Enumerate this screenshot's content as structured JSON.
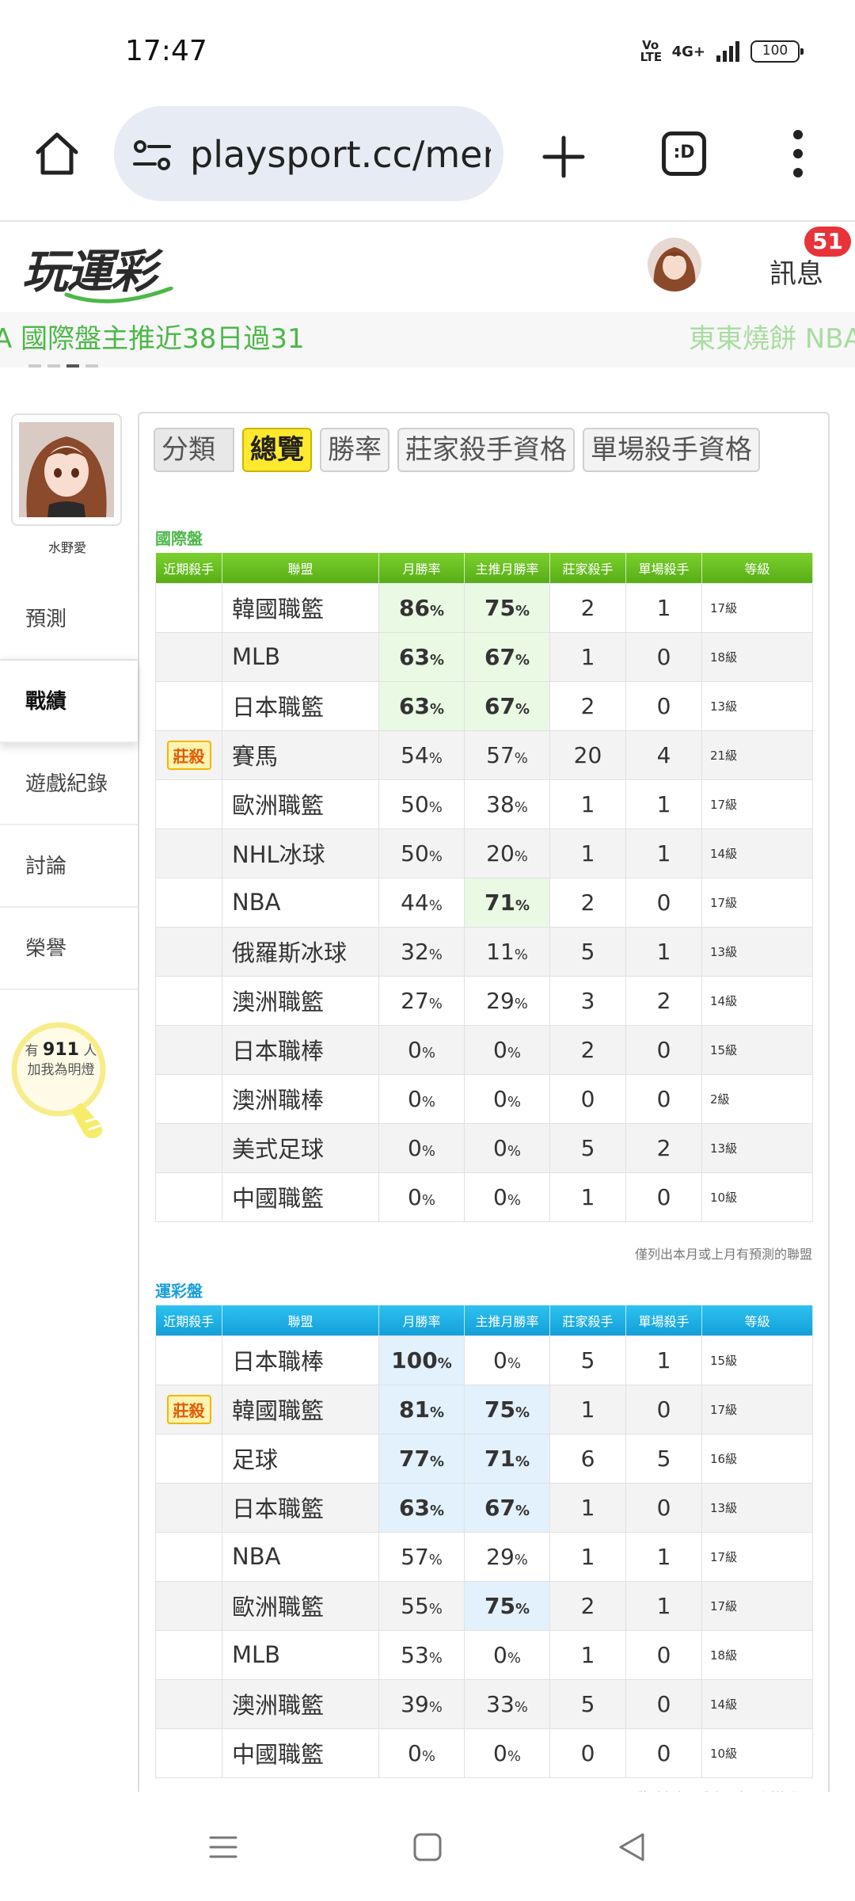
{
  "status": {
    "time": "17:47",
    "volte": "Vo LTE",
    "network": "4G+",
    "battery": "100"
  },
  "browser": {
    "url": "playsport.cc/men",
    "tabs_label": ":D"
  },
  "header": {
    "logo": "玩運彩",
    "messages_label": "訊息",
    "messages_count": "51"
  },
  "marquee": {
    "left_text": "A 國際盤主推近38日過31",
    "right_text": "東東燒餅 NBA"
  },
  "sidebar": {
    "user_name": "水野愛",
    "nav": [
      "預測",
      "戰績",
      "遊戲紀錄",
      "討論",
      "榮譽"
    ],
    "fans_prefix": "有",
    "fans_count": "911",
    "fans_suffix": "人",
    "fans_line2": "加我為明燈"
  },
  "tabs": [
    "分類",
    "總覽",
    "勝率",
    "莊家殺手資格",
    "單場殺手資格"
  ],
  "columns": [
    "近期殺手",
    "聯盟",
    "月勝率",
    "主推月勝率",
    "莊家殺手",
    "單場殺手",
    "等級"
  ],
  "percent_sign": "%",
  "footnote": "僅列出本月或上月有預測的聯盟",
  "colors": {
    "green_header": "#58ad17",
    "blue_header": "#139fd8",
    "green_title": "#4cb848",
    "blue_title": "#1a9fd9",
    "badge": "#e8333a",
    "active_tab": "#ffe92e"
  },
  "international": {
    "title": "國際盤",
    "rows": [
      {
        "killer": "",
        "league": "韓國職籃",
        "month": "86",
        "main": "75",
        "house": "2",
        "single": "1",
        "level": "17級",
        "hl_month": true,
        "hl_main": true
      },
      {
        "killer": "",
        "league": "MLB",
        "month": "63",
        "main": "67",
        "house": "1",
        "single": "0",
        "level": "18級",
        "hl_month": true,
        "hl_main": true
      },
      {
        "killer": "",
        "league": "日本職籃",
        "month": "63",
        "main": "67",
        "house": "2",
        "single": "0",
        "level": "13級",
        "hl_month": true,
        "hl_main": true
      },
      {
        "killer": "莊殺",
        "league": "賽馬",
        "month": "54",
        "main": "57",
        "house": "20",
        "single": "4",
        "level": "21級",
        "hl_month": false,
        "hl_main": false
      },
      {
        "killer": "",
        "league": "歐洲職籃",
        "month": "50",
        "main": "38",
        "house": "1",
        "single": "1",
        "level": "17級",
        "hl_month": false,
        "hl_main": false
      },
      {
        "killer": "",
        "league": "NHL冰球",
        "month": "50",
        "main": "20",
        "house": "1",
        "single": "1",
        "level": "14級",
        "hl_month": false,
        "hl_main": false
      },
      {
        "killer": "",
        "league": "NBA",
        "month": "44",
        "main": "71",
        "house": "2",
        "single": "0",
        "level": "17級",
        "hl_month": false,
        "hl_main": true
      },
      {
        "killer": "",
        "league": "俄羅斯冰球",
        "month": "32",
        "main": "11",
        "house": "5",
        "single": "1",
        "level": "13級",
        "hl_month": false,
        "hl_main": false
      },
      {
        "killer": "",
        "league": "澳洲職籃",
        "month": "27",
        "main": "29",
        "house": "3",
        "single": "2",
        "level": "14級",
        "hl_month": false,
        "hl_main": false
      },
      {
        "killer": "",
        "league": "日本職棒",
        "month": "0",
        "main": "0",
        "house": "2",
        "single": "0",
        "level": "15級",
        "hl_month": false,
        "hl_main": false
      },
      {
        "killer": "",
        "league": "澳洲職棒",
        "month": "0",
        "main": "0",
        "house": "0",
        "single": "0",
        "level": "2級",
        "hl_month": false,
        "hl_main": false
      },
      {
        "killer": "",
        "league": "美式足球",
        "month": "0",
        "main": "0",
        "house": "5",
        "single": "2",
        "level": "13級",
        "hl_month": false,
        "hl_main": false
      },
      {
        "killer": "",
        "league": "中國職籃",
        "month": "0",
        "main": "0",
        "house": "1",
        "single": "0",
        "level": "10級",
        "hl_month": false,
        "hl_main": false
      }
    ]
  },
  "sports_lottery": {
    "title": "運彩盤",
    "rows": [
      {
        "killer": "",
        "league": "日本職棒",
        "month": "100",
        "main": "0",
        "house": "5",
        "single": "1",
        "level": "15級",
        "hl_month": true,
        "hl_main": false
      },
      {
        "killer": "莊殺",
        "league": "韓國職籃",
        "month": "81",
        "main": "75",
        "house": "1",
        "single": "0",
        "level": "17級",
        "hl_month": true,
        "hl_main": true
      },
      {
        "killer": "",
        "league": "足球",
        "month": "77",
        "main": "71",
        "house": "6",
        "single": "5",
        "level": "16級",
        "hl_month": true,
        "hl_main": true
      },
      {
        "killer": "",
        "league": "日本職籃",
        "month": "63",
        "main": "67",
        "house": "1",
        "single": "0",
        "level": "13級",
        "hl_month": true,
        "hl_main": true
      },
      {
        "killer": "",
        "league": "NBA",
        "month": "57",
        "main": "29",
        "house": "1",
        "single": "1",
        "level": "17級",
        "hl_month": false,
        "hl_main": false
      },
      {
        "killer": "",
        "league": "歐洲職籃",
        "month": "55",
        "main": "75",
        "house": "2",
        "single": "1",
        "level": "17級",
        "hl_month": false,
        "hl_main": true
      },
      {
        "killer": "",
        "league": "MLB",
        "month": "53",
        "main": "0",
        "house": "1",
        "single": "0",
        "level": "18級",
        "hl_month": false,
        "hl_main": false
      },
      {
        "killer": "",
        "league": "澳洲職籃",
        "month": "39",
        "main": "33",
        "house": "5",
        "single": "0",
        "level": "14級",
        "hl_month": false,
        "hl_main": false
      },
      {
        "killer": "",
        "league": "中國職籃",
        "month": "0",
        "main": "0",
        "house": "0",
        "single": "0",
        "level": "10級",
        "hl_month": false,
        "hl_main": false
      }
    ]
  }
}
